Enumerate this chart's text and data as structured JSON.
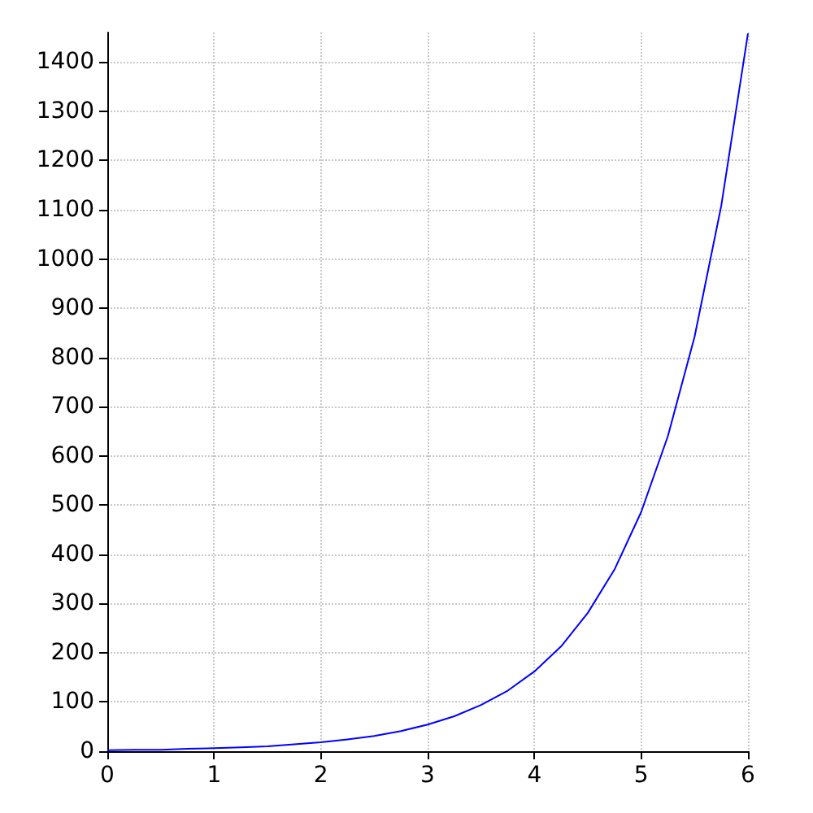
{
  "chart_data": {
    "type": "line",
    "x": [
      0,
      0.25,
      0.5,
      0.75,
      1,
      1.25,
      1.5,
      1.75,
      2,
      2.25,
      2.5,
      2.75,
      3,
      3.25,
      3.5,
      3.75,
      4,
      4.25,
      4.5,
      4.75,
      5,
      5.25,
      5.5,
      5.75,
      6
    ],
    "series": [
      {
        "color": "#0000ff",
        "values": [
          2,
          3,
          3,
          5,
          6,
          8,
          10,
          14,
          18,
          24,
          31,
          41,
          54,
          71,
          94,
          123,
          162,
          213,
          281,
          369,
          486,
          640,
          842,
          1108,
          1458
        ]
      }
    ],
    "xlim": [
      0,
      6
    ],
    "xticks": [
      0,
      1,
      2,
      3,
      4,
      5,
      6
    ],
    "ylim": [
      0,
      1460
    ],
    "yticks": [
      0,
      100,
      200,
      300,
      400,
      500,
      600,
      700,
      800,
      900,
      1000,
      1100,
      1200,
      1300,
      1400
    ],
    "grid": true,
    "marker": "none",
    "line_style": "solid"
  }
}
